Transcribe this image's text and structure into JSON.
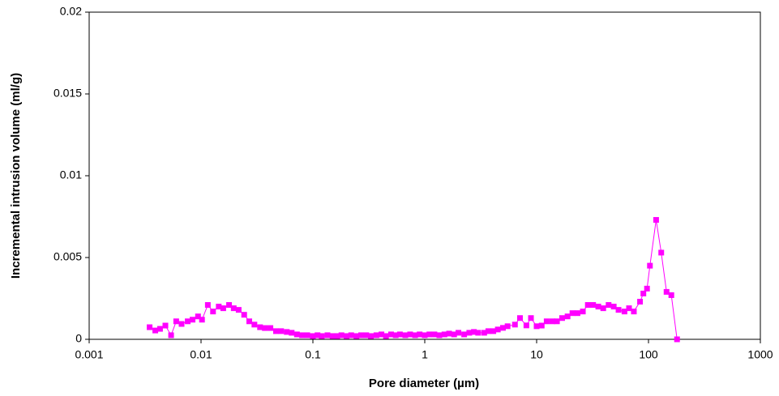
{
  "chart_data": {
    "type": "line",
    "xlabel": "Pore diameter (µm)",
    "ylabel": "Incremental intrusion volume (ml/g)",
    "xscale": "log",
    "marker": "square",
    "xlim": [
      0.001,
      1000
    ],
    "xticks": [
      0.001,
      0.01,
      0.1,
      1,
      10,
      100,
      1000
    ],
    "ylim": [
      0,
      0.02
    ],
    "yticks": [
      0,
      0.005,
      0.01,
      0.015,
      0.02
    ],
    "x": [
      0.00347,
      0.0039,
      0.0043,
      0.0048,
      0.0054,
      0.006,
      0.0067,
      0.0076,
      0.0084,
      0.0094,
      0.0102,
      0.0115,
      0.0128,
      0.0144,
      0.0158,
      0.0178,
      0.0196,
      0.0217,
      0.0243,
      0.027,
      0.03,
      0.0337,
      0.0372,
      0.0417,
      0.0468,
      0.052,
      0.0584,
      0.0646,
      0.072,
      0.08,
      0.089,
      0.1,
      0.11,
      0.12,
      0.135,
      0.15,
      0.165,
      0.18,
      0.2,
      0.22,
      0.245,
      0.27,
      0.3,
      0.33,
      0.37,
      0.41,
      0.45,
      0.5,
      0.55,
      0.6,
      0.67,
      0.74,
      0.82,
      0.9,
      1.0,
      1.1,
      1.22,
      1.35,
      1.5,
      1.65,
      1.83,
      2.0,
      2.25,
      2.5,
      2.75,
      3.0,
      3.4,
      3.7,
      4.1,
      4.5,
      5.0,
      5.5,
      6.4,
      7.1,
      8.1,
      8.9,
      10,
      11.1,
      12.3,
      13.8,
      15.2,
      16.9,
      18.9,
      20.9,
      23.2,
      25.9,
      28.7,
      32,
      35.6,
      39.4,
      44,
      48.9,
      54,
      61,
      67,
      74,
      84,
      90,
      97,
      103,
      117,
      130,
      145,
      160,
      180
    ],
    "series": [
      {
        "color": "#ff00ff",
        "values": [
          0.00074,
          0.00054,
          0.00064,
          0.00084,
          0.00025,
          0.0011,
          0.00094,
          0.0011,
          0.0012,
          0.0014,
          0.0012,
          0.0021,
          0.0017,
          0.002,
          0.0019,
          0.0021,
          0.0019,
          0.0018,
          0.0015,
          0.0011,
          0.0009,
          0.00074,
          0.00069,
          0.00069,
          0.0005,
          0.0005,
          0.00045,
          0.0004,
          0.0003,
          0.00025,
          0.00025,
          0.0002,
          0.00025,
          0.0002,
          0.00025,
          0.0002,
          0.0002,
          0.00025,
          0.0002,
          0.00025,
          0.0002,
          0.00025,
          0.00025,
          0.0002,
          0.00025,
          0.0003,
          0.0002,
          0.0003,
          0.00025,
          0.0003,
          0.00025,
          0.0003,
          0.00025,
          0.0003,
          0.00025,
          0.0003,
          0.0003,
          0.00025,
          0.0003,
          0.00035,
          0.0003,
          0.0004,
          0.0003,
          0.0004,
          0.00045,
          0.0004,
          0.0004,
          0.0005,
          0.0005,
          0.0006,
          0.0007,
          0.0008,
          0.0009,
          0.0013,
          0.00085,
          0.0013,
          0.0008,
          0.00084,
          0.0011,
          0.0011,
          0.0011,
          0.0013,
          0.0014,
          0.0016,
          0.0016,
          0.0017,
          0.0021,
          0.0021,
          0.002,
          0.0019,
          0.0021,
          0.002,
          0.0018,
          0.0017,
          0.0019,
          0.0017,
          0.0023,
          0.0028,
          0.0031,
          0.0045,
          0.0073,
          0.0053,
          0.0029,
          0.0027,
          0
        ]
      }
    ]
  }
}
